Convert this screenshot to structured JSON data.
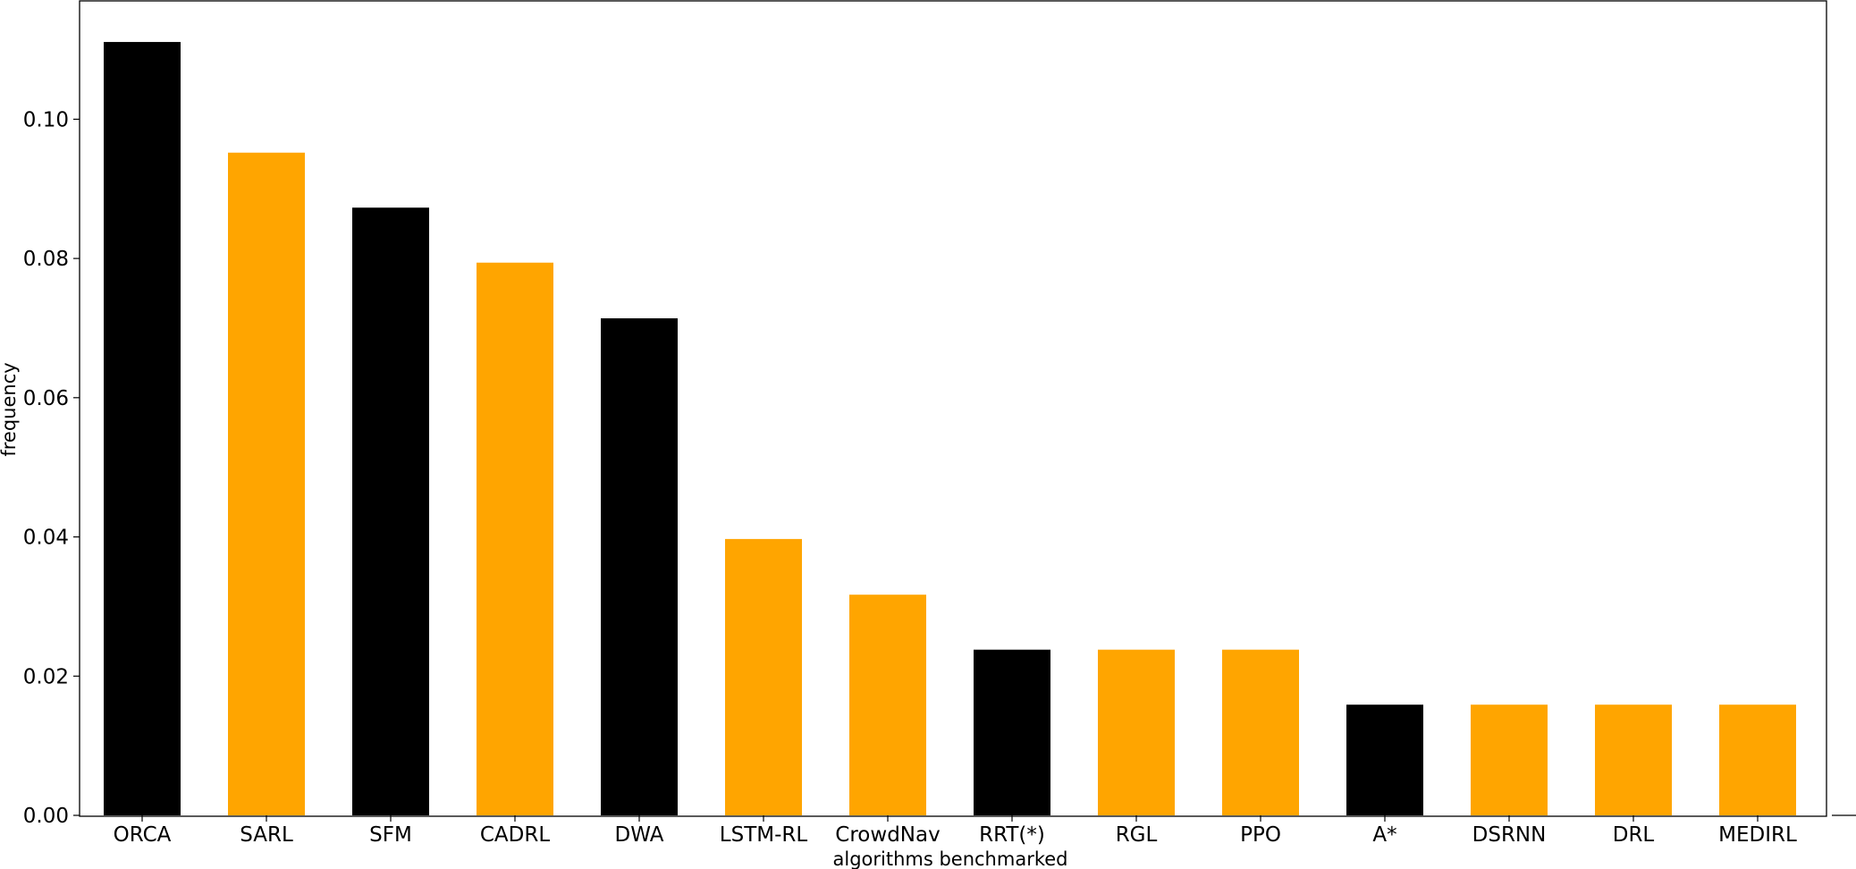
{
  "chart_data": {
    "type": "bar",
    "xlabel": "algorithms benchmarked",
    "ylabel": "frequency",
    "categories": [
      "ORCA",
      "SARL",
      "SFM",
      "CADRL",
      "DWA",
      "LSTM-RL",
      "CrowdNav",
      "RRT(*)",
      "RGL",
      "PPO",
      "A*",
      "DSRNN",
      "DRL",
      "MEDIRL"
    ],
    "values": [
      0.1111,
      0.0952,
      0.0873,
      0.0794,
      0.0714,
      0.0397,
      0.0317,
      0.0238,
      0.0238,
      0.0238,
      0.0159,
      0.0159,
      0.0159,
      0.0159
    ],
    "bar_colors": [
      "#000000",
      "#FFA500",
      "#000000",
      "#FFA500",
      "#000000",
      "#FFA500",
      "#FFA500",
      "#000000",
      "#FFA500",
      "#FFA500",
      "#000000",
      "#FFA500",
      "#FFA500",
      "#FFA500"
    ],
    "yticks": [
      "0.00",
      "0.02",
      "0.04",
      "0.06",
      "0.08",
      "0.10"
    ],
    "ylim": [
      0,
      0.117
    ],
    "grid": false,
    "legend": "none"
  }
}
